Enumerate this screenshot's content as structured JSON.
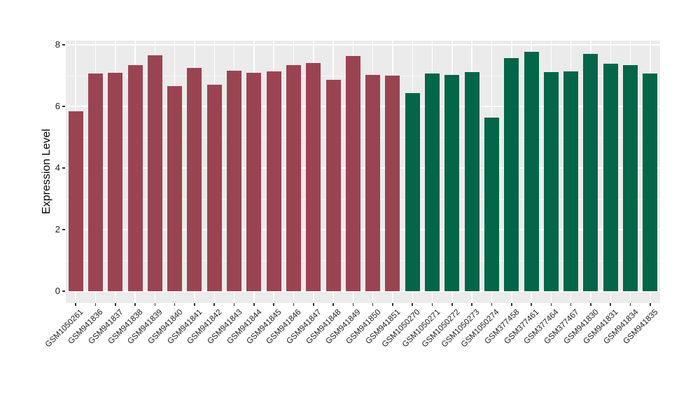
{
  "chart_data": {
    "type": "bar",
    "ylabel": "Expression Level",
    "xlabel": "",
    "ylim": [
      0,
      8
    ],
    "yticks_major": [
      0,
      2,
      4,
      6,
      8
    ],
    "yticks_minor": [
      1,
      3,
      5,
      7
    ],
    "legend": "none",
    "grid": "white-on-gray",
    "panel_background": "#EBEBEB",
    "gridline_color": "#FFFFFF",
    "categories": [
      "GSM1050261",
      "GSM941836",
      "GSM941837",
      "GSM941838",
      "GSM941839",
      "GSM941840",
      "GSM941841",
      "GSM941842",
      "GSM941843",
      "GSM941844",
      "GSM941845",
      "GSM941846",
      "GSM941847",
      "GSM941848",
      "GSM941849",
      "GSM941850",
      "GSM941851",
      "GSM1050270",
      "GSM1050271",
      "GSM1050272",
      "GSM1050273",
      "GSM1050274",
      "GSM377458",
      "GSM377461",
      "GSM377464",
      "GSM377467",
      "GSM941830",
      "GSM941831",
      "GSM941834",
      "GSM941835"
    ],
    "values": [
      5.85,
      7.07,
      7.1,
      7.34,
      7.65,
      6.65,
      7.25,
      6.7,
      7.15,
      7.1,
      7.13,
      7.34,
      7.4,
      6.86,
      7.63,
      7.02,
      6.99,
      6.44,
      7.06,
      7.03,
      7.11,
      5.64,
      7.57,
      7.77,
      7.11,
      7.13,
      7.7,
      7.38,
      7.34,
      7.06
    ],
    "color_groups": [
      {
        "color": "#9A4452",
        "start": 0,
        "end": 16
      },
      {
        "color": "#036649",
        "start": 17,
        "end": 29
      }
    ]
  }
}
